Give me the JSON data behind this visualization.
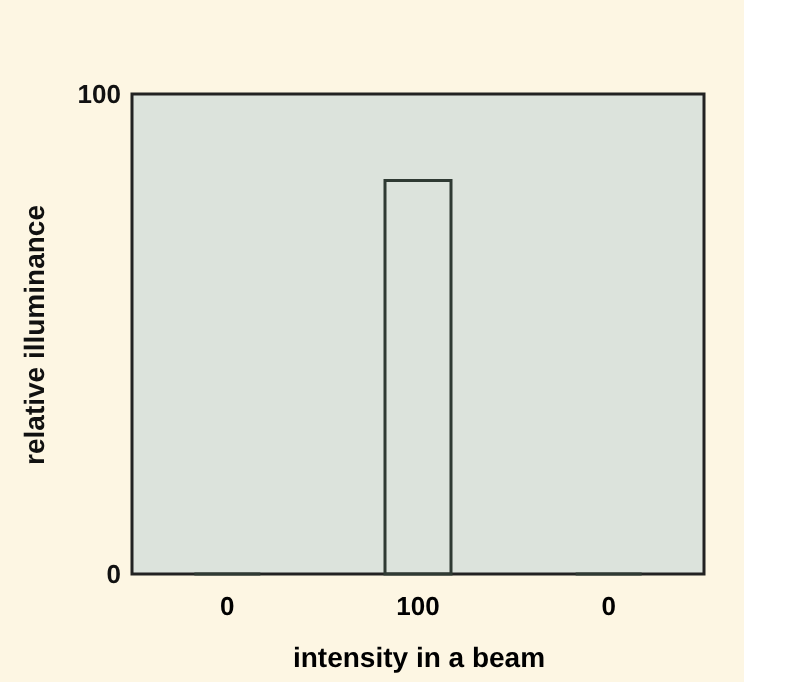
{
  "chart_data": {
    "type": "bar",
    "categories": [
      "0",
      "100",
      "0"
    ],
    "values": [
      0,
      82,
      0
    ],
    "color": "#2f3a33",
    "xlabel": "intensity in a beam",
    "ylabel": "relative illuminance",
    "ylim": [
      0,
      100
    ],
    "yticks": [
      0,
      100
    ],
    "grid": false
  }
}
